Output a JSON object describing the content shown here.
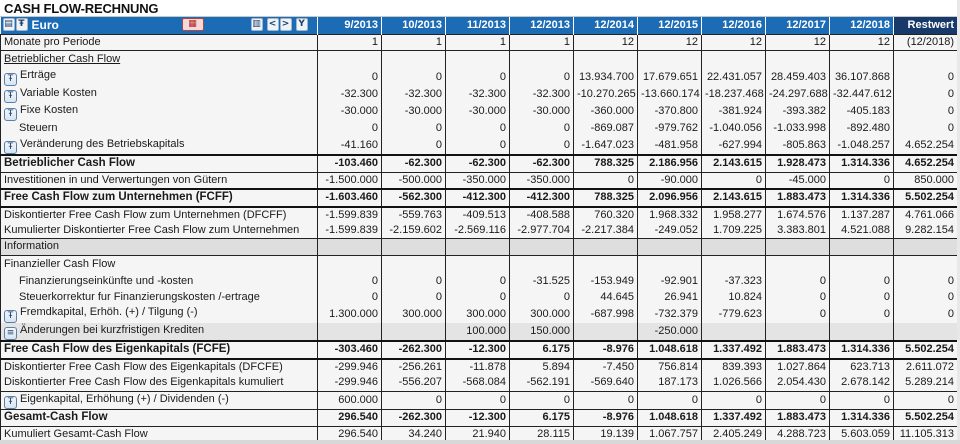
{
  "title": "CASH FLOW-RECHNUNG",
  "header": {
    "currency": "Euro",
    "icons": [
      "structure-icon",
      "tree-icon",
      "excel-export-icon",
      "table-icon",
      "prev-icon",
      "next-icon",
      "filter-icon"
    ],
    "periods": [
      "9/2013",
      "10/2013",
      "11/2013",
      "12/2013",
      "12/2014",
      "12/2015",
      "12/2016",
      "12/2017",
      "12/2018",
      "Restwert"
    ]
  },
  "colors": {
    "header_blue": "#1b6bb5",
    "restwert_header": "#173a6a",
    "row_bg": "#f5f5f5",
    "info_bg": "#dedede"
  },
  "rows": [
    {
      "label": "Monate pro Periode",
      "values": [
        "1",
        "1",
        "1",
        "1",
        "12",
        "12",
        "12",
        "12",
        "12",
        "(12/2018)"
      ]
    },
    {
      "label": "Betrieblicher Cash Flow",
      "values": [
        "",
        "",
        "",
        "",
        "",
        "",
        "",
        "",
        "",
        ""
      ]
    },
    {
      "label": "Erträge",
      "values": [
        "0",
        "0",
        "0",
        "0",
        "13.934.700",
        "17.679.651",
        "22.431.057",
        "28.459.403",
        "36.107.868",
        "0"
      ]
    },
    {
      "label": "Variable Kosten",
      "values": [
        "-32.300",
        "-32.300",
        "-32.300",
        "-32.300",
        "-10.270.265",
        "-13.660.174",
        "-18.237.468",
        "-24.297.688",
        "-32.447.612",
        "0"
      ]
    },
    {
      "label": "Fixe Kosten",
      "values": [
        "-30.000",
        "-30.000",
        "-30.000",
        "-30.000",
        "-360.000",
        "-370.800",
        "-381.924",
        "-393.382",
        "-405.183",
        "0"
      ]
    },
    {
      "label": "Steuern",
      "values": [
        "0",
        "0",
        "0",
        "0",
        "-869.087",
        "-979.762",
        "-1.040.056",
        "-1.033.998",
        "-892.480",
        "0"
      ]
    },
    {
      "label": "Veränderung des Betriebskapitals",
      "values": [
        "-41.160",
        "0",
        "0",
        "0",
        "-1.647.023",
        "-481.958",
        "-627.994",
        "-805.863",
        "-1.048.257",
        "4.652.254"
      ]
    },
    {
      "label": "Betrieblicher Cash Flow",
      "values": [
        "-103.460",
        "-62.300",
        "-62.300",
        "-62.300",
        "788.325",
        "2.186.956",
        "2.143.615",
        "1.928.473",
        "1.314.336",
        "4.652.254"
      ]
    },
    {
      "label": "Investitionen in und Verwertungen von Gütern",
      "values": [
        "-1.500.000",
        "-500.000",
        "-350.000",
        "-350.000",
        "0",
        "-90.000",
        "0",
        "-45.000",
        "0",
        "850.000"
      ]
    },
    {
      "label": "Free Cash Flow zum Unternehmen (FCFF)",
      "values": [
        "-1.603.460",
        "-562.300",
        "-412.300",
        "-412.300",
        "788.325",
        "2.096.956",
        "2.143.615",
        "1.883.473",
        "1.314.336",
        "5.502.254"
      ]
    },
    {
      "label": "Diskontierter Free Cash Flow zum Unternehmen (DFCFF)",
      "values": [
        "-1.599.839",
        "-559.763",
        "-409.513",
        "-408.588",
        "760.320",
        "1.968.332",
        "1.958.277",
        "1.674.576",
        "1.137.287",
        "4.761.066"
      ]
    },
    {
      "label": "Kumulierter Diskontierter Free Cash Flow zum Unternehmen",
      "values": [
        "-1.599.839",
        "-2.159.602",
        "-2.569.116",
        "-2.977.704",
        "-2.217.384",
        "-249.052",
        "1.709.225",
        "3.383.801",
        "4.521.088",
        "9.282.154"
      ]
    },
    {
      "label": "Information",
      "values": [
        "",
        "",
        "",
        "",
        "",
        "",
        "",
        "",
        "",
        ""
      ]
    },
    {
      "label": "Finanzieller Cash Flow",
      "values": [
        "",
        "",
        "",
        "",
        "",
        "",
        "",
        "",
        "",
        ""
      ]
    },
    {
      "label": "Finanzierungseinkünfte und -kosten",
      "values": [
        "0",
        "0",
        "0",
        "-31.525",
        "-153.949",
        "-92.901",
        "-37.323",
        "0",
        "0",
        "0"
      ]
    },
    {
      "label": "Steuerkorrektur fur Finanzierungskosten /-ertrage",
      "values": [
        "0",
        "0",
        "0",
        "0",
        "44.645",
        "26.941",
        "10.824",
        "0",
        "0",
        "0"
      ]
    },
    {
      "label": "Fremdkapital, Erhöh. (+) / Tilgung (-)",
      "values": [
        "1.300.000",
        "300.000",
        "300.000",
        "300.000",
        "-687.998",
        "-732.379",
        "-779.623",
        "0",
        "0",
        "0"
      ]
    },
    {
      "label": "Änderungen bei kurzfristigen Krediten",
      "values": [
        "",
        "",
        "100.000",
        "150.000",
        "",
        "-250.000",
        "",
        "",
        "",
        ""
      ]
    },
    {
      "label": "Free Cash Flow des Eigenkapitals (FCFE)",
      "values": [
        "-303.460",
        "-262.300",
        "-12.300",
        "6.175",
        "-8.976",
        "1.048.618",
        "1.337.492",
        "1.883.473",
        "1.314.336",
        "5.502.254"
      ]
    },
    {
      "label": "Diskontierter Free Cash Flow des Eigenkapitals (DFCFE)",
      "values": [
        "-299.946",
        "-256.261",
        "-11.878",
        "5.894",
        "-7.450",
        "756.814",
        "839.393",
        "1.027.864",
        "623.713",
        "2.611.072"
      ]
    },
    {
      "label": "Diskontierter Free Cash Flow des Eigenkapitals kumuliert",
      "values": [
        "-299.946",
        "-556.207",
        "-568.084",
        "-562.191",
        "-569.640",
        "187.173",
        "1.026.566",
        "2.054.430",
        "2.678.142",
        "5.289.214"
      ]
    },
    {
      "label": "Eigenkapital, Erhöhung (+) / Dividenden (-)",
      "values": [
        "600.000",
        "0",
        "0",
        "0",
        "0",
        "0",
        "0",
        "0",
        "0",
        "0"
      ]
    },
    {
      "label": "Gesamt-Cash Flow",
      "values": [
        "296.540",
        "-262.300",
        "-12.300",
        "6.175",
        "-8.976",
        "1.048.618",
        "1.337.492",
        "1.883.473",
        "1.314.336",
        "5.502.254"
      ]
    },
    {
      "label": "Kumuliert Gesamt-Cash Flow",
      "values": [
        "296.540",
        "34.240",
        "21.940",
        "28.115",
        "19.139",
        "1.067.757",
        "2.405.249",
        "4.288.723",
        "5.603.059",
        "11.105.313"
      ]
    }
  ]
}
